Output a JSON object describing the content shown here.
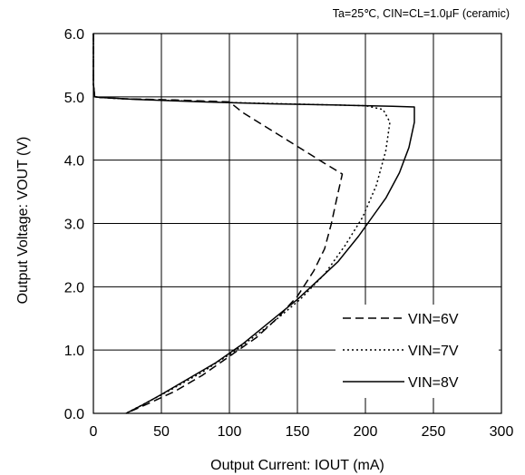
{
  "chart_data": {
    "type": "line",
    "title": "",
    "note": "Ta=25℃,  CIN=CL=1.0μF (ceramic)",
    "xlabel": "Output Current: IOUT (mA)",
    "ylabel": "Output Voltage: VOUT (V)",
    "xlim": [
      0,
      300
    ],
    "ylim": [
      0,
      6
    ],
    "xticks": [
      0,
      50,
      100,
      150,
      200,
      250,
      300
    ],
    "yticks": [
      0.0,
      1.0,
      2.0,
      3.0,
      4.0,
      5.0,
      6.0
    ],
    "xtick_labels": [
      "0",
      "50",
      "100",
      "150",
      "200",
      "250",
      "300"
    ],
    "ytick_labels": [
      "0.0",
      "1.0",
      "2.0",
      "3.0",
      "4.0",
      "5.0",
      "6.0"
    ],
    "grid": true,
    "legend_position": "bottom-right",
    "series": [
      {
        "name": "VIN=6V",
        "style": "dashed",
        "x": [
          0,
          0,
          1,
          5,
          20,
          60,
          100,
          110,
          125,
          140,
          155,
          170,
          183,
          179,
          175,
          170,
          162,
          150,
          135,
          120,
          100,
          80,
          60,
          40,
          24
        ],
        "y": [
          6.0,
          5.2,
          5.0,
          4.99,
          4.97,
          4.95,
          4.92,
          4.75,
          4.55,
          4.35,
          4.15,
          3.95,
          3.78,
          3.4,
          3.0,
          2.6,
          2.25,
          1.85,
          1.5,
          1.2,
          0.9,
          0.6,
          0.35,
          0.15,
          0.0
        ]
      },
      {
        "name": "VIN=7V",
        "style": "dotted",
        "x": [
          0,
          0,
          1,
          5,
          20,
          60,
          100,
          140,
          180,
          200,
          213,
          218,
          215,
          208,
          198,
          185,
          170,
          152,
          130,
          105,
          80,
          55,
          24
        ],
        "y": [
          6.0,
          5.2,
          5.0,
          4.99,
          4.97,
          4.94,
          4.91,
          4.89,
          4.87,
          4.86,
          4.8,
          4.6,
          4.15,
          3.6,
          3.1,
          2.65,
          2.2,
          1.8,
          1.4,
          1.0,
          0.65,
          0.35,
          0.0
        ]
      },
      {
        "name": "VIN=8V",
        "style": "solid",
        "x": [
          0,
          0,
          1,
          5,
          30,
          80,
          130,
          180,
          220,
          236,
          236,
          232,
          225,
          215,
          205,
          195,
          180,
          165,
          150,
          130,
          110,
          90,
          70,
          50,
          35,
          24
        ],
        "y": [
          6.0,
          5.2,
          5.0,
          4.99,
          4.96,
          4.92,
          4.89,
          4.87,
          4.85,
          4.84,
          4.6,
          4.2,
          3.8,
          3.4,
          3.1,
          2.8,
          2.4,
          2.1,
          1.8,
          1.45,
          1.1,
          0.8,
          0.55,
          0.3,
          0.12,
          0.0
        ]
      }
    ]
  }
}
